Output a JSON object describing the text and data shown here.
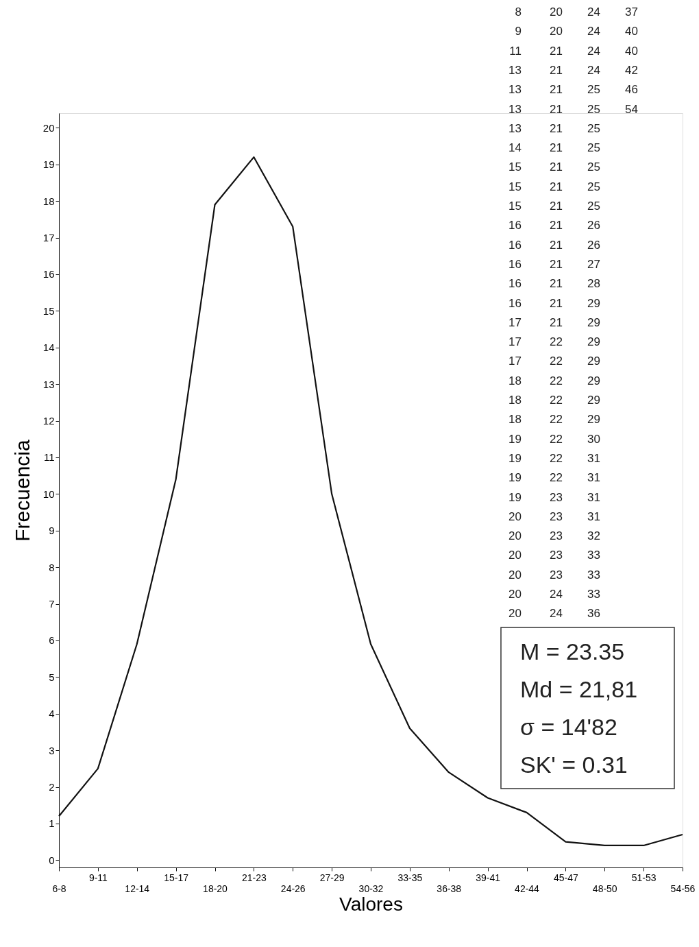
{
  "chart_data": {
    "type": "line",
    "xlabel": "Valores",
    "ylabel": "Frecuencia",
    "categories": [
      "6-8",
      "9-11",
      "12-14",
      "15-17",
      "18-20",
      "21-23",
      "24-26",
      "27-29",
      "30-32",
      "33-35",
      "36-38",
      "39-41",
      "42-44",
      "45-47",
      "48-50",
      "51-53",
      "54-56"
    ],
    "series": [
      {
        "color": "#111111",
        "values": [
          1.2,
          2.5,
          5.9,
          10.4,
          17.9,
          19.2,
          17.3,
          10.0,
          5.9,
          3.6,
          2.4,
          1.7,
          1.3,
          0.5,
          0.4,
          0.4,
          0.7
        ]
      }
    ],
    "ylim": [
      -0.2,
      20.4
    ],
    "yticks": [
      0,
      1,
      2,
      3,
      4,
      5,
      6,
      7,
      8,
      9,
      10,
      11,
      12,
      13,
      14,
      15,
      16,
      17,
      18,
      19,
      20
    ],
    "grid": false,
    "marker": "none",
    "line_style": "solid",
    "annotations": [
      "8 20 24 37",
      "9 20 24 40",
      "11 21 24 40",
      "13 21 24 42",
      "13 21 25 46",
      "13 21 25 54",
      "13 21 25",
      "14 21 25",
      "15 21 25",
      "15 21 25",
      "15 21 25",
      "16 21 26",
      "16 21 26",
      "16 21 27",
      "16 21 28",
      "16 21 29",
      "17 21 29",
      "17 22 29",
      "17 22 29",
      "18 22 29",
      "18 22 29",
      "18 22 29",
      "19 22 30",
      "19 22 31",
      "19 22 31",
      "19 23 31",
      "20 23 31",
      "20 23 32",
      "20 23 33",
      "20 23 33",
      "20 24 33",
      "20 24 36",
      "M = 23.35",
      "Md = 21,81",
      "σ = 14'82",
      "SK' = 0.31"
    ]
  }
}
